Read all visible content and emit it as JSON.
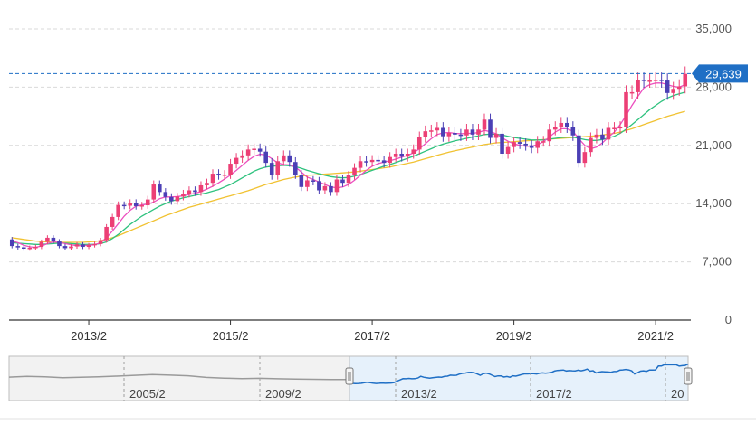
{
  "colors": {
    "up": "#ec3f75",
    "down": "#4b3fb5",
    "ma_short": "#ec4fbf",
    "ma_mid": "#2ec27e",
    "ma_long": "#f1c232",
    "price_line": "#1f6fc5",
    "price_badge_bg": "#1f6fc5",
    "grid": "#d9d9d9",
    "navigator_line": "#1f6fc5",
    "navigator_past_line": "#9a9a9a",
    "navigator_fill_selected": "#e6f1fb",
    "navigator_fill_past": "#f2f2f2"
  },
  "chart_data": {
    "type": "candlestick",
    "interval": "monthly",
    "y_ticks": [
      "35,000",
      "28,000",
      "21,000",
      "14,000",
      "7,000",
      "0"
    ],
    "y_tick_values": [
      35000,
      28000,
      21000,
      14000,
      7000,
      0
    ],
    "ylim": [
      0,
      35000
    ],
    "x_ticks": [
      "2013/2",
      "2015/2",
      "2017/2",
      "2019/2",
      "2021/2"
    ],
    "current_price": 29639,
    "current_price_label": "29,639",
    "closes": [
      8900,
      8750,
      8600,
      8700,
      8800,
      9400,
      9900,
      9450,
      8900,
      8650,
      8850,
      9100,
      8800,
      9000,
      9150,
      9600,
      11200,
      12400,
      13850,
      13750,
      14100,
      13700,
      13800,
      14500,
      16300,
      15400,
      14800,
      14300,
      14850,
      15200,
      15600,
      15400,
      16200,
      16500,
      17600,
      17400,
      17500,
      18800,
      19500,
      19800,
      20500,
      20600,
      20250,
      18900,
      17400,
      19100,
      19800,
      19000,
      17500,
      16000,
      16800,
      16700,
      15600,
      16100,
      15400,
      16900,
      16500,
      17400,
      18300,
      19100,
      19000,
      19250,
      19200,
      18900,
      19600,
      20000,
      19650,
      20000,
      20500,
      22000,
      22700,
      22800,
      23100,
      22100,
      22500,
      22300,
      22200,
      22900,
      22300,
      22900,
      24100,
      21900,
      22400,
      20000,
      20800,
      21400,
      21200,
      21000,
      20700,
      21500,
      21500,
      22900,
      23200,
      23700,
      23200,
      22200,
      18900,
      20200,
      21900,
      22300,
      21700,
      23100,
      23100,
      23200,
      27400,
      27400,
      28900,
      28800,
      28800,
      28900,
      28800,
      27300,
      27800,
      28100,
      29600
    ],
    "opens": [
      9700,
      8900,
      8750,
      8600,
      8700,
      8800,
      9400,
      9900,
      9450,
      8900,
      8650,
      8850,
      9100,
      8800,
      9000,
      9150,
      9600,
      11200,
      12400,
      13850,
      13750,
      14100,
      13700,
      13800,
      14500,
      16300,
      15400,
      14800,
      14300,
      14850,
      15200,
      15600,
      15400,
      16200,
      16500,
      17600,
      17400,
      17500,
      18800,
      19500,
      19800,
      20500,
      20600,
      20250,
      18900,
      17400,
      19100,
      19800,
      19000,
      17500,
      16000,
      16800,
      16700,
      15600,
      16100,
      15400,
      16900,
      16500,
      17400,
      18300,
      19100,
      19000,
      19250,
      19200,
      18900,
      19600,
      20000,
      19650,
      20000,
      20500,
      22000,
      22700,
      22800,
      23100,
      22100,
      22500,
      22300,
      22200,
      22900,
      22300,
      22900,
      24100,
      21900,
      22400,
      20000,
      20800,
      21400,
      21200,
      21000,
      20700,
      21500,
      21500,
      22900,
      23200,
      23700,
      23200,
      22200,
      18900,
      20200,
      21900,
      22300,
      21700,
      23100,
      23100,
      23200,
      27400,
      27400,
      28900,
      28800,
      28800,
      28900,
      28800,
      27300,
      27800,
      28100
    ],
    "ma_short": [
      9500,
      9300,
      9000,
      8800,
      8750,
      8900,
      9200,
      9400,
      9350,
      9200,
      9050,
      8950,
      8950,
      9000,
      9050,
      9300,
      9900,
      10700,
      11600,
      12500,
      13200,
      13700,
      13850,
      13950,
      14200,
      14600,
      14800,
      14800,
      14850,
      14950,
      15100,
      15250,
      15450,
      15750,
      16100,
      16500,
      16950,
      17450,
      18000,
      18600,
      19200,
      19700,
      19950,
      19850,
      19400,
      18900,
      18700,
      18650,
      18400,
      17800,
      17200,
      16900,
      16600,
      16300,
      16000,
      15900,
      16000,
      16300,
      16800,
      17400,
      18000,
      18500,
      18800,
      19000,
      19150,
      19350,
      19600,
      19800,
      20100,
      20600,
      21200,
      21800,
      22300,
      22500,
      22550,
      22450,
      22400,
      22450,
      22450,
      22550,
      22800,
      22650,
      22400,
      21900,
      21500,
      21200,
      21000,
      20900,
      20900,
      21100,
      21450,
      22000,
      22600,
      23000,
      23000,
      22700,
      21800,
      21000,
      20600,
      20800,
      21300,
      22000,
      22600,
      23500,
      24600,
      25800,
      26900,
      27900,
      28300,
      28500,
      28500,
      28300,
      28100,
      28000,
      28300
    ],
    "ma_mid": [
      9300,
      9250,
      9200,
      9150,
      9100,
      9100,
      9150,
      9200,
      9250,
      9250,
      9200,
      9150,
      9100,
      9100,
      9100,
      9200,
      9400,
      9800,
      10300,
      10900,
      11500,
      12000,
      12500,
      12900,
      13300,
      13700,
      14000,
      14300,
      14500,
      14700,
      14850,
      15000,
      15150,
      15300,
      15500,
      15700,
      16000,
      16300,
      16700,
      17100,
      17500,
      17900,
      18200,
      18400,
      18500,
      18550,
      18600,
      18550,
      18450,
      18250,
      18000,
      17800,
      17600,
      17400,
      17250,
      17150,
      17100,
      17150,
      17300,
      17500,
      17750,
      18000,
      18250,
      18500,
      18700,
      18950,
      19200,
      19450,
      19700,
      20000,
      20300,
      20600,
      20900,
      21150,
      21350,
      21550,
      21700,
      21850,
      22000,
      22150,
      22300,
      22350,
      22350,
      22250,
      22100,
      21950,
      21850,
      21750,
      21650,
      21650,
      21650,
      21750,
      21850,
      21950,
      22000,
      22000,
      21850,
      21700,
      21600,
      21600,
      21700,
      21900,
      22100,
      22450,
      22950,
      23500,
      24100,
      24700,
      25300,
      25800,
      26300,
      26700,
      27000,
      27200,
      27400
    ],
    "ma_long": [
      9900,
      9800,
      9700,
      9600,
      9500,
      9450,
      9400,
      9350,
      9350,
      9350,
      9350,
      9350,
      9350,
      9400,
      9450,
      9550,
      9700,
      9900,
      10150,
      10450,
      10750,
      11050,
      11350,
      11650,
      11950,
      12250,
      12550,
      12800,
      13050,
      13300,
      13550,
      13750,
      13950,
      14150,
      14350,
      14550,
      14750,
      14950,
      15150,
      15350,
      15550,
      15800,
      16050,
      16300,
      16500,
      16700,
      16900,
      17050,
      17200,
      17300,
      17400,
      17450,
      17500,
      17550,
      17600,
      17650,
      17700,
      17750,
      17800,
      17900,
      18000,
      18100,
      18200,
      18300,
      18400,
      18550,
      18700,
      18850,
      19000,
      19200,
      19400,
      19600,
      19800,
      20000,
      20200,
      20350,
      20500,
      20650,
      20800,
      20950,
      21100,
      21200,
      21300,
      21350,
      21400,
      21450,
      21500,
      21550,
      21600,
      21650,
      21700,
      21750,
      21800,
      21850,
      21900,
      21950,
      22000,
      22050,
      22100,
      22150,
      22250,
      22350,
      22450,
      22600,
      22800,
      23000,
      23250,
      23500,
      23750,
      24000,
      24250,
      24500,
      24700,
      24900,
      25100
    ],
    "navigator_ticks": [
      "2005/2",
      "2009/2",
      "2013/2",
      "2017/2",
      "20"
    ]
  }
}
